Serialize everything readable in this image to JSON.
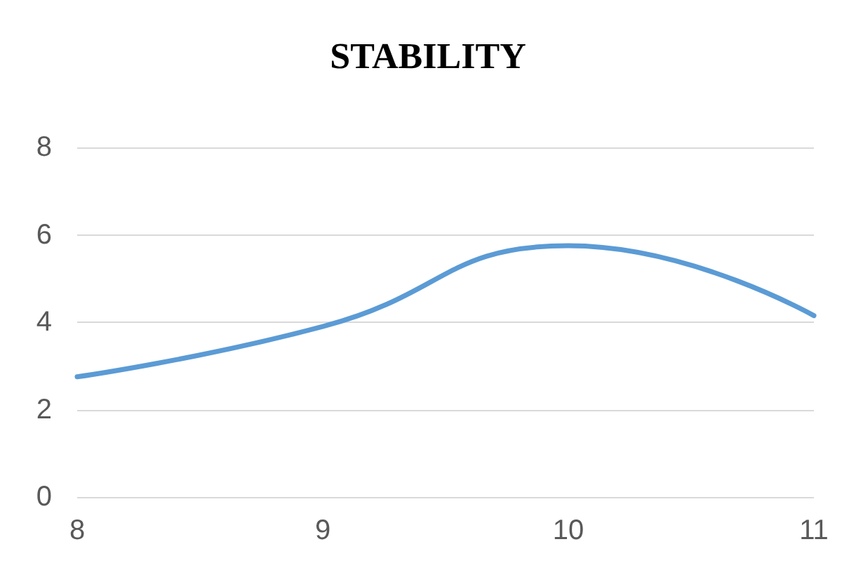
{
  "chart_data": {
    "type": "line",
    "title": "STABILITY",
    "x": [
      8,
      9,
      10,
      11
    ],
    "series": [
      {
        "color": "#5b9bd5",
        "values": [
          2.75,
          3.9,
          5.75,
          4.15
        ]
      }
    ],
    "xlim": [
      8,
      11
    ],
    "xticks": [
      8,
      9,
      10,
      11
    ],
    "ylim": [
      0,
      8
    ],
    "yticks": [
      0,
      2,
      4,
      6,
      8
    ],
    "grid": "y",
    "marker": "none",
    "line_style": "solid"
  }
}
